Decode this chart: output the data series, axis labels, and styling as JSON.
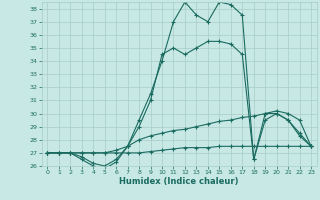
{
  "xlabel": "Humidex (Indice chaleur)",
  "x": [
    0,
    1,
    2,
    3,
    4,
    5,
    6,
    7,
    8,
    9,
    10,
    11,
    12,
    13,
    14,
    15,
    16,
    17,
    18,
    19,
    20,
    21,
    22,
    23
  ],
  "line1": [
    27,
    27,
    27,
    26.5,
    26,
    25.8,
    26.3,
    27.5,
    29.5,
    31.5,
    34,
    37,
    38.5,
    37.5,
    37,
    38.5,
    38.3,
    37.5,
    26.5,
    30.0,
    30.0,
    29.5,
    28.3,
    27.5
  ],
  "line2": [
    27,
    27,
    27,
    26.7,
    26.2,
    26.0,
    26.5,
    27.5,
    29.0,
    31.0,
    34.5,
    35.0,
    34.5,
    35.0,
    35.5,
    35.5,
    35.3,
    34.5,
    26.5,
    29.5,
    30.0,
    29.5,
    28.5,
    27.5
  ],
  "line3": [
    27,
    27,
    27,
    27,
    27,
    27.0,
    27.2,
    27.5,
    28.0,
    28.3,
    28.5,
    28.7,
    28.8,
    29.0,
    29.2,
    29.4,
    29.5,
    29.7,
    29.8,
    30.0,
    30.2,
    30.0,
    29.5,
    27.5
  ],
  "line4": [
    27,
    27,
    27,
    27,
    27,
    27,
    27,
    27,
    27,
    27.1,
    27.2,
    27.3,
    27.4,
    27.4,
    27.4,
    27.5,
    27.5,
    27.5,
    27.5,
    27.5,
    27.5,
    27.5,
    27.5,
    27.5
  ],
  "ylim": [
    26,
    38.5
  ],
  "xlim": [
    -0.5,
    23.5
  ],
  "yticks": [
    26,
    27,
    28,
    29,
    30,
    31,
    32,
    33,
    34,
    35,
    36,
    37,
    38
  ],
  "xticks": [
    0,
    1,
    2,
    3,
    4,
    5,
    6,
    7,
    8,
    9,
    10,
    11,
    12,
    13,
    14,
    15,
    16,
    17,
    18,
    19,
    20,
    21,
    22,
    23
  ],
  "line_color": "#1a6b60",
  "bg_color": "#c8e8e5",
  "grid_color": "#a8ccc9",
  "marker": "+"
}
